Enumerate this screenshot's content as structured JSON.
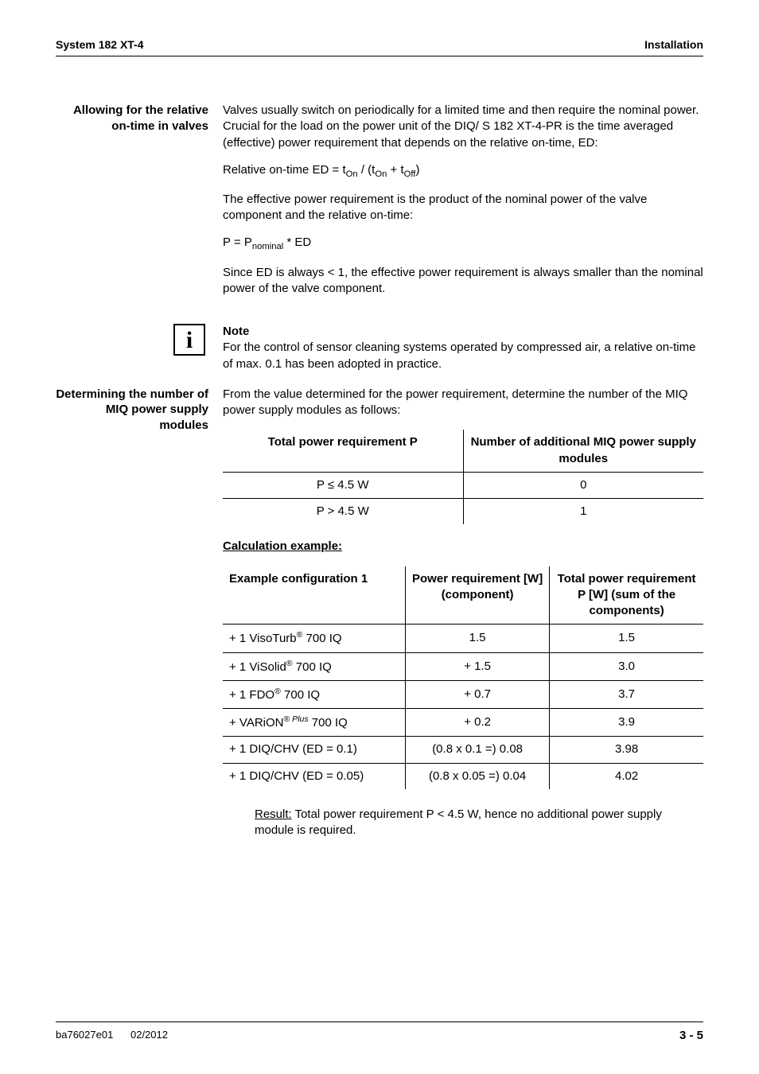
{
  "header": {
    "left": "System 182 XT-4",
    "right": "Installation"
  },
  "sec1": {
    "margin": "Allowing for the relative on-time in valves",
    "p1": "Valves usually switch on periodically for a limited time and then require the nominal power. Crucial for the load on the power unit of the DIQ/ S 182 XT-4-PR is the time averaged (effective) power requirement that depends on the relative on-time, ED:",
    "eq1a": "Relative on-time ED = t",
    "eq1b": " / (t",
    "eq1c": " + t",
    "eq1d": ")",
    "p2": "The effective power requirement is the product of the nominal power of the valve component and the relative on-time:",
    "eq2a": "P = P",
    "eq2b": " * ED",
    "p3": "Since ED is always < 1, the effective power requirement is always smaller than the nominal power of the valve component."
  },
  "note": {
    "title": "Note",
    "body": "For the control of sensor cleaning systems operated by compressed air, a relative on-time of max. 0.1 has been adopted in practice."
  },
  "sec2": {
    "margin": "Determining the number of MIQ power supply modules",
    "p1": "From the value determined for the power requirement, determine the number of the MIQ power supply modules as follows:"
  },
  "t1": {
    "h1": "Total power requirement P",
    "h2": "Number of additional MIQ power supply modules",
    "r1c1": "P ≤ 4.5 W",
    "r1c2": "0",
    "r2c1": "P > 4.5 W",
    "r2c2": "1"
  },
  "calc_heading": "Calculation example:",
  "t2": {
    "h1": "Example configuration 1",
    "h2": "Power requirement [W] (component)",
    "h3": "Total power requirement P [W] (sum of the components)",
    "rows": [
      {
        "c1a": "+ 1 VisoTurb",
        "c1b": " 700 IQ",
        "c2": "1.5",
        "c3": "1.5",
        "sup": "®"
      },
      {
        "c1a": "+ 1 ViSolid",
        "c1b": " 700 IQ",
        "c2": "+ 1.5",
        "c3": "3.0",
        "sup": "®"
      },
      {
        "c1a": "+ 1 FDO",
        "c1b": " 700 IQ",
        "c2": "+ 0.7",
        "c3": "3.7",
        "sup": "®"
      },
      {
        "c1a": "+ VARiON",
        "c1b": " 700 IQ",
        "c2": "+ 0.2",
        "c3": "3.9",
        "sup": "® Plus",
        "italic": true
      },
      {
        "c1a": "+ 1 DIQ/CHV (ED = 0.1)",
        "c1b": "",
        "c2": "(0.8 x 0.1 =) 0.08",
        "c3": "3.98",
        "sup": ""
      },
      {
        "c1a": "+ 1 DIQ/CHV (ED = 0.05)",
        "c1b": "",
        "c2": "(0.8 x 0.05 =) 0.04",
        "c3": "4.02",
        "sup": ""
      }
    ]
  },
  "result": {
    "label": "Result:",
    "text": " Total power requirement P < 4.5 W, hence no additional power supply module is required."
  },
  "footer": {
    "left1": "ba76027e01",
    "left2": "02/2012",
    "right": "3 - 5"
  },
  "sub": {
    "on": "On",
    "off": "Off",
    "nominal": "nominal"
  }
}
